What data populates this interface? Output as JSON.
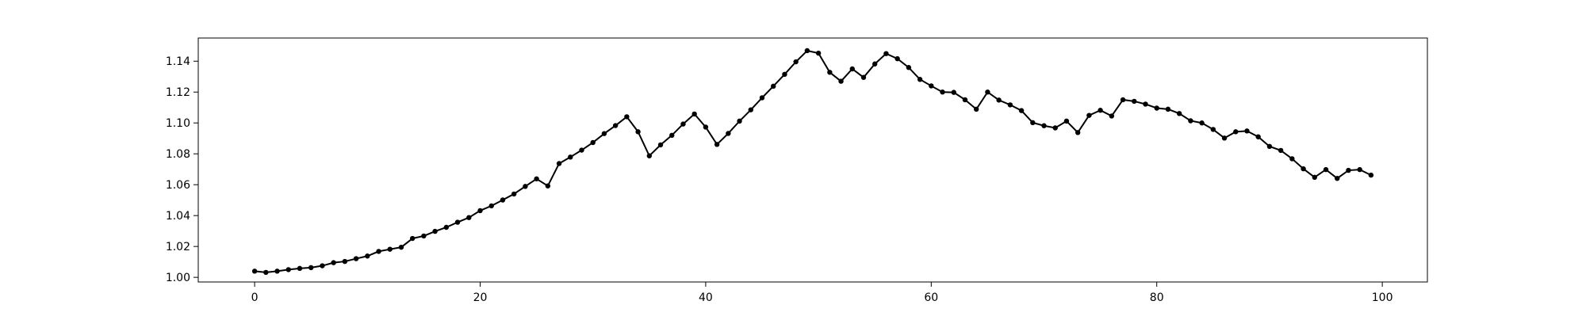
{
  "chart_data": {
    "type": "line",
    "title": "",
    "xlabel": "",
    "ylabel": "",
    "xlim": [
      -5,
      104
    ],
    "ylim": [
      0.997,
      1.155
    ],
    "x_ticks": [
      0,
      20,
      40,
      60,
      80,
      100
    ],
    "x_tick_labels": [
      "0",
      "20",
      "40",
      "60",
      "80",
      "100"
    ],
    "y_ticks": [
      1.0,
      1.02,
      1.04,
      1.06,
      1.08,
      1.1,
      1.12,
      1.14
    ],
    "y_tick_labels": [
      "1.00",
      "1.02",
      "1.04",
      "1.06",
      "1.08",
      "1.10",
      "1.12",
      "1.14"
    ],
    "grid": false,
    "series": [
      {
        "color": "#000000",
        "marker": "circle",
        "x": [
          0,
          1,
          2,
          3,
          4,
          5,
          6,
          7,
          8,
          9,
          10,
          11,
          12,
          13,
          14,
          15,
          16,
          17,
          18,
          19,
          20,
          21,
          22,
          23,
          24,
          25,
          26,
          27,
          28,
          29,
          30,
          31,
          32,
          33,
          34,
          35,
          36,
          37,
          38,
          39,
          40,
          41,
          42,
          43,
          44,
          45,
          46,
          47,
          48,
          49,
          50,
          51,
          52,
          53,
          54,
          55,
          56,
          57,
          58,
          59,
          60,
          61,
          62,
          63,
          64,
          65,
          66,
          67,
          68,
          69,
          70,
          71,
          72,
          73,
          74,
          75,
          76,
          77,
          78,
          79,
          80,
          81,
          82,
          83,
          84,
          85,
          86,
          87,
          88,
          89,
          90,
          91,
          92,
          93,
          94,
          95,
          96,
          97,
          98,
          99
        ],
        "y": [
          1.004,
          1.0032,
          1.004,
          1.005,
          1.0058,
          1.0063,
          1.0075,
          1.0095,
          1.0103,
          1.0121,
          1.0138,
          1.0168,
          1.0182,
          1.0195,
          1.0252,
          1.0268,
          1.0298,
          1.0324,
          1.0357,
          1.0387,
          1.0432,
          1.0463,
          1.0501,
          1.054,
          1.0589,
          1.0638,
          1.0592,
          1.0737,
          1.0779,
          1.0824,
          1.0873,
          1.0931,
          1.0983,
          1.104,
          1.0943,
          1.0787,
          1.0858,
          1.092,
          1.0993,
          1.1058,
          1.0973,
          1.0861,
          1.0932,
          1.1012,
          1.1085,
          1.1163,
          1.1238,
          1.1315,
          1.1396,
          1.1468,
          1.1452,
          1.1328,
          1.127,
          1.135,
          1.1295,
          1.1382,
          1.1449,
          1.1416,
          1.1359,
          1.1282,
          1.124,
          1.12,
          1.1198,
          1.115,
          1.1089,
          1.12,
          1.1148,
          1.1117,
          1.108,
          1.1002,
          1.0982,
          1.0968,
          1.1012,
          1.0938,
          1.1049,
          1.1082,
          1.1045,
          1.115,
          1.114,
          1.1122,
          1.1096,
          1.1089,
          1.1061,
          1.1014,
          1.1,
          1.0958,
          1.0902,
          1.0943,
          1.0948,
          1.091,
          1.0848,
          1.0822,
          1.0768,
          1.0703,
          1.0648,
          1.0698,
          1.0641,
          1.0693,
          1.0698,
          1.0662
        ]
      }
    ]
  }
}
